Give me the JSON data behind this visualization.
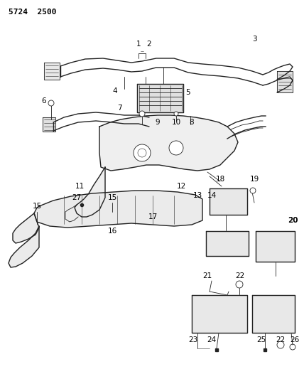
{
  "title": "5724  2500",
  "bg_color": "#ffffff",
  "line_color": "#222222",
  "label_color": "#000000",
  "figsize": [
    4.28,
    5.33
  ],
  "dpi": 100,
  "lw_main": 1.0,
  "lw_thin": 0.6,
  "lw_hair": 0.4
}
